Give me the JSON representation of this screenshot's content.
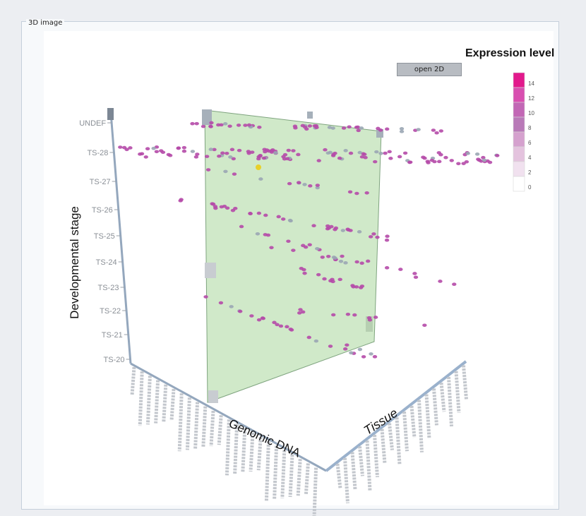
{
  "window": {
    "title": "3D image",
    "open_button": "open 2D"
  },
  "legend": {
    "title": "Expression level",
    "ticks": [
      "14",
      "12",
      "10",
      "8",
      "6",
      "4",
      "2",
      "0"
    ],
    "colors": [
      "#e2198c",
      "#d84fb0",
      "#c267b5",
      "#b97ab8",
      "#d5a1ce",
      "#e4c3de",
      "#f1e1ef",
      "#ffffff"
    ]
  },
  "chart_data": {
    "type": "scatter",
    "axes": {
      "z_label": "Developmental stage",
      "x_label": "Genomic DNA",
      "y_label": "Tissue",
      "z_ticks": [
        "UNDEF",
        "TS-28",
        "TS-27",
        "TS-26",
        "TS-25",
        "TS-24",
        "TS-23",
        "TS-22",
        "TS-21",
        "TS-20"
      ]
    },
    "series_colors": {
      "point": "#b54aa9",
      "highlight": "#e8d02a",
      "stripe": "#9aa6b4",
      "plane": "#c6e3bf",
      "plane_edge": "#7ea27e"
    },
    "rows": [
      {
        "stage": "UNDEF",
        "count": 46
      },
      {
        "stage": "TS-28",
        "count": 118
      },
      {
        "stage": "TS-27",
        "count": 14
      },
      {
        "stage": "TS-26",
        "count": 36
      },
      {
        "stage": "TS-25",
        "count": 18
      },
      {
        "stage": "TS-24",
        "count": 12
      },
      {
        "stage": "TS-23",
        "count": 14
      },
      {
        "stage": "TS-22",
        "count": 22
      },
      {
        "stage": "TS-21",
        "count": 10
      },
      {
        "stage": "TS-20",
        "count": 4
      }
    ]
  }
}
